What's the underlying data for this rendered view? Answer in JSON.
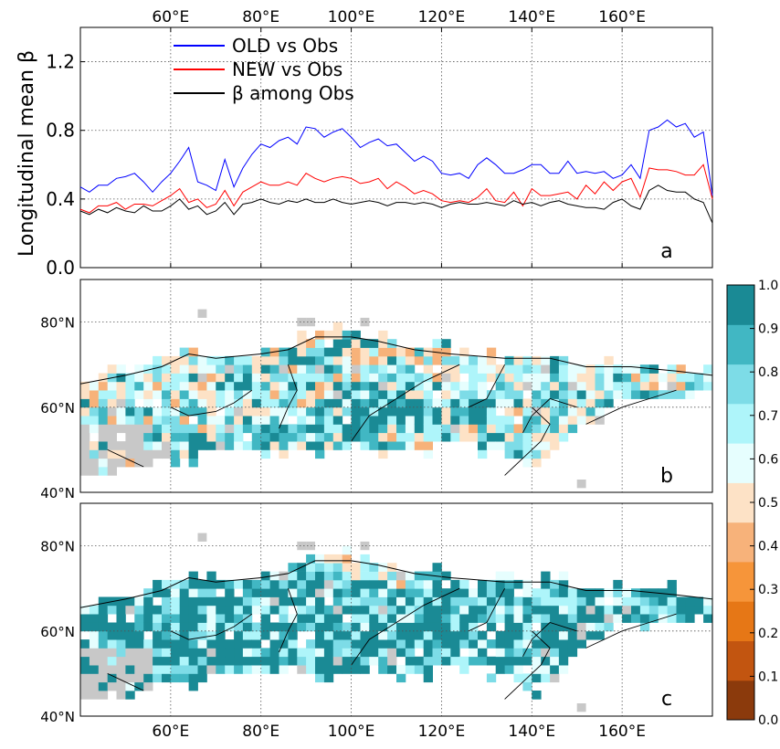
{
  "chart_data": [
    {
      "type": "line",
      "panel_label": "a",
      "ylabel": "Longitudinal mean β",
      "ylim": [
        0.0,
        1.4
      ],
      "xlim": [
        40,
        180
      ],
      "yticks": [
        "0.0",
        "0.4",
        "0.8",
        "1.2"
      ],
      "xticks": [
        "60°E",
        "80°E",
        "100°E",
        "120°E",
        "140°E",
        "160°E"
      ],
      "grid": true,
      "legend_position": "top-left",
      "x": [
        40,
        42,
        44,
        46,
        48,
        50,
        52,
        54,
        56,
        58,
        60,
        62,
        64,
        66,
        68,
        70,
        72,
        74,
        76,
        78,
        80,
        82,
        84,
        86,
        88,
        90,
        92,
        94,
        96,
        98,
        100,
        102,
        104,
        106,
        108,
        110,
        112,
        114,
        116,
        118,
        120,
        122,
        124,
        126,
        128,
        130,
        132,
        134,
        136,
        138,
        140,
        142,
        144,
        146,
        148,
        150,
        152,
        154,
        156,
        158,
        160,
        162,
        164,
        166,
        168,
        170,
        172,
        174,
        176,
        178,
        180
      ],
      "series": [
        {
          "name": "OLD vs Obs",
          "color": "#0000ff",
          "values": [
            0.47,
            0.44,
            0.48,
            0.48,
            0.52,
            0.53,
            0.55,
            0.5,
            0.44,
            0.5,
            0.55,
            0.62,
            0.7,
            0.5,
            0.48,
            0.45,
            0.63,
            0.47,
            0.58,
            0.66,
            0.72,
            0.7,
            0.74,
            0.76,
            0.72,
            0.82,
            0.81,
            0.76,
            0.79,
            0.81,
            0.76,
            0.7,
            0.73,
            0.75,
            0.71,
            0.72,
            0.67,
            0.62,
            0.65,
            0.62,
            0.55,
            0.54,
            0.55,
            0.52,
            0.6,
            0.64,
            0.6,
            0.55,
            0.55,
            0.57,
            0.6,
            0.6,
            0.55,
            0.55,
            0.62,
            0.55,
            0.56,
            0.55,
            0.56,
            0.52,
            0.54,
            0.6,
            0.52,
            0.8,
            0.82,
            0.86,
            0.82,
            0.84,
            0.76,
            0.79,
            0.42
          ]
        },
        {
          "name": "NEW vs Obs",
          "color": "#ff0000",
          "values": [
            0.34,
            0.32,
            0.36,
            0.36,
            0.38,
            0.34,
            0.37,
            0.37,
            0.36,
            0.39,
            0.42,
            0.46,
            0.38,
            0.4,
            0.35,
            0.37,
            0.45,
            0.36,
            0.44,
            0.47,
            0.5,
            0.48,
            0.48,
            0.5,
            0.48,
            0.55,
            0.52,
            0.5,
            0.52,
            0.53,
            0.52,
            0.49,
            0.5,
            0.52,
            0.46,
            0.5,
            0.47,
            0.43,
            0.45,
            0.43,
            0.39,
            0.38,
            0.39,
            0.38,
            0.41,
            0.46,
            0.39,
            0.38,
            0.44,
            0.36,
            0.46,
            0.42,
            0.42,
            0.43,
            0.44,
            0.4,
            0.48,
            0.43,
            0.5,
            0.45,
            0.5,
            0.52,
            0.41,
            0.58,
            0.57,
            0.57,
            0.56,
            0.54,
            0.54,
            0.6,
            0.4
          ]
        },
        {
          "name": "β among Obs",
          "color": "#000000",
          "values": [
            0.33,
            0.31,
            0.34,
            0.32,
            0.35,
            0.33,
            0.32,
            0.36,
            0.33,
            0.33,
            0.36,
            0.4,
            0.34,
            0.36,
            0.31,
            0.33,
            0.38,
            0.31,
            0.37,
            0.38,
            0.4,
            0.38,
            0.37,
            0.39,
            0.38,
            0.4,
            0.38,
            0.38,
            0.4,
            0.38,
            0.37,
            0.38,
            0.39,
            0.38,
            0.36,
            0.38,
            0.38,
            0.37,
            0.38,
            0.37,
            0.35,
            0.37,
            0.38,
            0.37,
            0.37,
            0.38,
            0.37,
            0.36,
            0.39,
            0.37,
            0.38,
            0.36,
            0.38,
            0.39,
            0.37,
            0.36,
            0.35,
            0.35,
            0.34,
            0.38,
            0.4,
            0.36,
            0.34,
            0.45,
            0.48,
            0.45,
            0.44,
            0.44,
            0.4,
            0.38,
            0.26
          ]
        }
      ]
    },
    {
      "type": "heatmap",
      "panel_label": "b",
      "xticks": [
        "60°E",
        "80°E",
        "100°E",
        "120°E",
        "140°E",
        "160°E"
      ],
      "yticks": [
        "40°N",
        "60°N",
        "80°N"
      ],
      "xlim": [
        40,
        180
      ],
      "ylim": [
        40,
        90
      ]
    },
    {
      "type": "heatmap",
      "panel_label": "c",
      "xticks": [
        "60°E",
        "80°E",
        "100°E",
        "120°E",
        "140°E",
        "160°E"
      ],
      "yticks": [
        "40°N",
        "60°N",
        "80°N"
      ],
      "xlim": [
        40,
        180
      ],
      "ylim": [
        40,
        90
      ]
    }
  ],
  "colorbar": {
    "ticks": [
      "0.0",
      "0.1",
      "0.2",
      "0.3",
      "0.4",
      "0.5",
      "0.6",
      "0.7",
      "0.8",
      "0.9",
      "1.0"
    ],
    "colors": [
      "#8b3a0c",
      "#c25510",
      "#e67716",
      "#f6953a",
      "#f7b27a",
      "#fde2c6",
      "#e6fefe",
      "#aef5fa",
      "#7ddce7",
      "#41b7c3",
      "#1a8a95"
    ]
  },
  "map_colors": {
    "missing": "#c8c8c8",
    "coastline": "#000000"
  }
}
